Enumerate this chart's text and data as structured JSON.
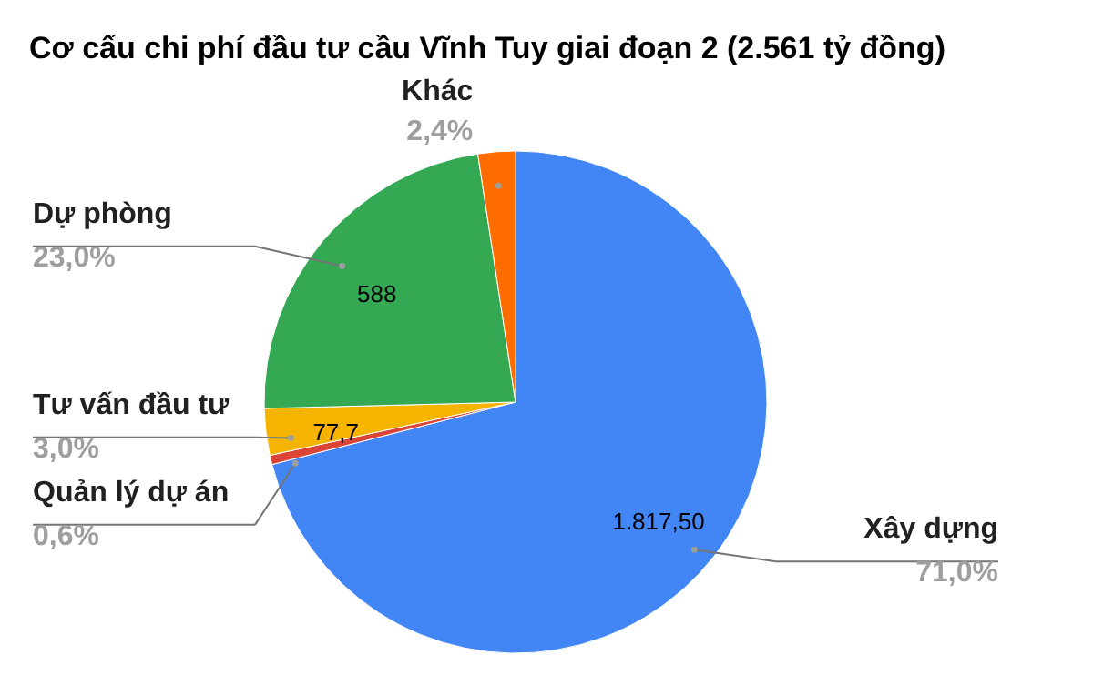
{
  "chart_data": {
    "type": "pie",
    "title": "Cơ cấu chi phí đầu tư cầu Vĩnh Tuy giai đoạn 2 (2.561 tỷ đồng)",
    "categories": [
      "Xây dựng",
      "Quản lý dự án",
      "Tư vấn đầu tư",
      "Dự phòng",
      "Khác"
    ],
    "values": [
      71.0,
      0.6,
      3.0,
      23.0,
      2.4
    ],
    "colors": [
      "#4285f4",
      "#db4437",
      "#f4b400",
      "#34a853",
      "#ff6d01"
    ],
    "value_labels": [
      "71,0%",
      "0,6%",
      "3,0%",
      "23,0%",
      "2,4%"
    ],
    "annotations": [
      {
        "text": "1.817,50",
        "x": "Xây dựng"
      },
      {
        "text": "77,7",
        "x": "Tư vấn đầu tư"
      },
      {
        "text": "588",
        "x": "Dự phòng"
      }
    ]
  }
}
